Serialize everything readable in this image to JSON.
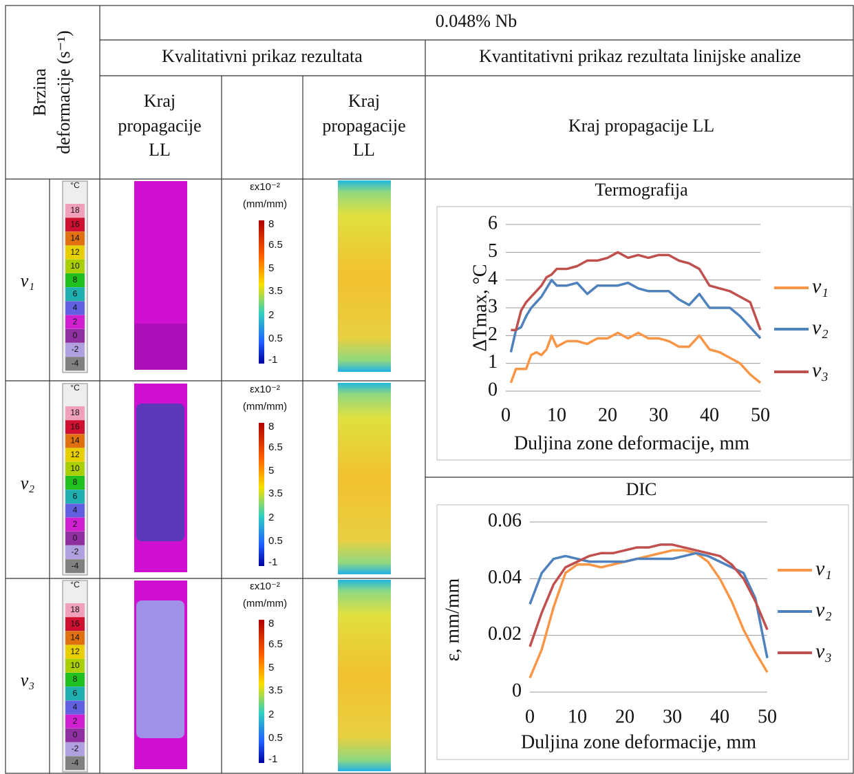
{
  "header": {
    "corner_line1": "Brzina",
    "corner_line2": "deformacije (s⁻¹)",
    "title": "0.048% Nb",
    "qualitative": "Kvalitativni prikaz rezultata",
    "quantitative": "Kvantitativni prikaz rezultata linijske analize",
    "col1": [
      "Kraj",
      "propagacije",
      "LL"
    ],
    "col2": [
      "Kraj",
      "propagacije",
      "LL"
    ],
    "col3": "Kraj propagacije LL"
  },
  "rows": [
    {
      "label": "v₁"
    },
    {
      "label": "v₂"
    },
    {
      "label": "v₃"
    }
  ],
  "temperature_scale": {
    "unit": "°C",
    "labels": [
      18,
      16,
      14,
      12,
      10,
      8,
      6,
      4,
      2,
      0,
      -2,
      -4
    ]
  },
  "strain_scale": {
    "title": "εx10⁻²",
    "unit": "(mm/mm)",
    "labels": [
      8,
      6.5,
      5,
      3.5,
      2,
      0.5,
      -1
    ]
  },
  "charts": [
    {
      "type": "line",
      "title": "Termografija",
      "xlabel": "Duljina zone deformacije, mm",
      "ylabel": "ΔTmax, °C",
      "xlim": [
        0,
        50
      ],
      "ylim": [
        0,
        6
      ],
      "xticks": [
        0,
        10,
        20,
        30,
        40,
        50
      ],
      "yticks": [
        0,
        1,
        2,
        3,
        4,
        5,
        6
      ],
      "grid": true,
      "x": [
        1,
        2,
        3,
        4,
        5,
        6,
        7,
        8,
        9,
        10,
        12,
        14,
        16,
        18,
        20,
        22,
        24,
        26,
        28,
        30,
        32,
        34,
        36,
        38,
        40,
        42,
        44,
        46,
        48,
        50
      ],
      "series": [
        {
          "name": "v₁",
          "color": "#f79646",
          "values": [
            0.3,
            0.8,
            0.8,
            0.8,
            1.3,
            1.4,
            1.3,
            1.5,
            2.0,
            1.6,
            1.8,
            1.8,
            1.7,
            1.9,
            1.9,
            2.1,
            1.9,
            2.1,
            1.9,
            1.9,
            1.8,
            1.6,
            1.6,
            2.0,
            1.5,
            1.4,
            1.2,
            1.0,
            0.6,
            0.3
          ]
        },
        {
          "name": "v₂",
          "color": "#4f81bd",
          "values": [
            1.4,
            2.2,
            2.3,
            2.7,
            3.0,
            3.2,
            3.4,
            3.7,
            4.0,
            3.8,
            3.8,
            3.9,
            3.5,
            3.8,
            3.8,
            3.8,
            3.9,
            3.7,
            3.6,
            3.6,
            3.6,
            3.3,
            3.1,
            3.5,
            3.0,
            3.0,
            3.0,
            2.7,
            2.3,
            1.9
          ]
        },
        {
          "name": "v₃",
          "color": "#c0504d",
          "values": [
            2.2,
            2.2,
            2.9,
            3.2,
            3.4,
            3.6,
            3.8,
            4.1,
            4.2,
            4.4,
            4.4,
            4.5,
            4.7,
            4.7,
            4.8,
            5.0,
            4.8,
            4.9,
            4.8,
            4.9,
            4.9,
            4.7,
            4.6,
            4.4,
            3.8,
            3.7,
            3.6,
            3.4,
            3.2,
            2.2
          ]
        }
      ]
    },
    {
      "type": "line",
      "title": "DIC",
      "xlabel": "Duljina zone deformacije, mm",
      "ylabel": "ε, mm/mm",
      "xlim": [
        0,
        50
      ],
      "ylim": [
        0,
        0.06
      ],
      "xticks": [
        0,
        10,
        20,
        30,
        40,
        50
      ],
      "yticks": [
        0,
        0.02,
        0.04,
        0.06
      ],
      "grid": true,
      "x": [
        0,
        2.5,
        5,
        7.5,
        10,
        12.5,
        15,
        17.5,
        20,
        22.5,
        25,
        27.5,
        30,
        32.5,
        35,
        37.5,
        40,
        42.5,
        45,
        47.5,
        50
      ],
      "series": [
        {
          "name": "v₁",
          "color": "#f79646",
          "values": [
            0.005,
            0.015,
            0.03,
            0.042,
            0.045,
            0.045,
            0.044,
            0.045,
            0.046,
            0.047,
            0.048,
            0.049,
            0.05,
            0.05,
            0.049,
            0.046,
            0.04,
            0.032,
            0.022,
            0.014,
            0.007
          ]
        },
        {
          "name": "v₂",
          "color": "#4f81bd",
          "values": [
            0.031,
            0.042,
            0.047,
            0.048,
            0.047,
            0.046,
            0.046,
            0.046,
            0.046,
            0.047,
            0.047,
            0.047,
            0.047,
            0.048,
            0.049,
            0.048,
            0.046,
            0.044,
            0.042,
            0.033,
            0.012
          ]
        },
        {
          "name": "v₃",
          "color": "#c0504d",
          "values": [
            0.016,
            0.028,
            0.038,
            0.044,
            0.046,
            0.048,
            0.049,
            0.049,
            0.05,
            0.051,
            0.051,
            0.052,
            0.052,
            0.051,
            0.05,
            0.049,
            0.048,
            0.045,
            0.04,
            0.032,
            0.022
          ]
        }
      ]
    }
  ]
}
